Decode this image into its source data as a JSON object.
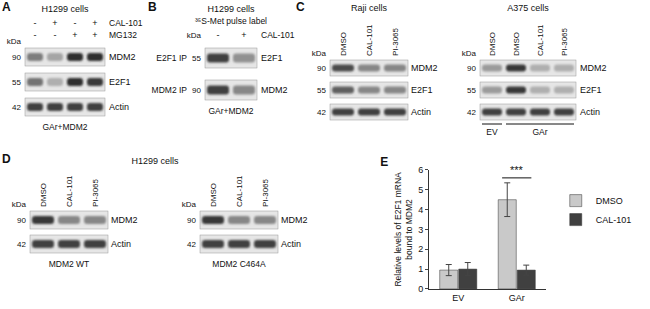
{
  "figure": {
    "panels": [
      {
        "label": "A",
        "cells": "H1299 cells",
        "kda_header": "kDa",
        "treatments": [
          {
            "name": "CAL-101",
            "signs": [
              "-",
              "+",
              "-",
              "+"
            ]
          },
          {
            "name": "MG132",
            "signs": [
              "-",
              "-",
              "+",
              "+"
            ]
          }
        ],
        "rows": [
          {
            "kda": "90",
            "protein": "MDM2",
            "intensity": [
              0.55,
              0.35,
              0.95,
              0.95
            ]
          },
          {
            "kda": "55",
            "protein": "E2F1",
            "intensity": [
              0.6,
              0.3,
              0.95,
              0.9
            ]
          },
          {
            "kda": "42",
            "protein": "Actin",
            "intensity": [
              0.85,
              0.85,
              0.85,
              0.85
            ]
          }
        ],
        "footer": "GAr+MDM2"
      },
      {
        "label": "B",
        "cells": "H1299 cells",
        "subtitle": "³⁵S-Met pulse label",
        "kda_header": "kDa",
        "treatments": [
          {
            "name": "CAL-101",
            "signs": [
              "-",
              "+"
            ]
          }
        ],
        "rows": [
          {
            "ip": "E2F1 IP",
            "kda": "55",
            "protein": "E2F1",
            "intensity": [
              0.85,
              0.45
            ]
          },
          {
            "ip": "MDM2 IP",
            "kda": "90",
            "protein": "MDM2",
            "intensity": [
              0.85,
              0.5
            ]
          }
        ],
        "footer": "GAr+MDM2"
      },
      {
        "label": "C",
        "blots": [
          {
            "cells": "Raji cells",
            "kda_header": "kDa",
            "lanes": [
              "DMSO",
              "CAL-101",
              "PI-3065"
            ],
            "rows": [
              {
                "kda": "90",
                "protein": "MDM2",
                "intensity": [
                  0.8,
                  0.5,
                  0.5
                ]
              },
              {
                "kda": "55",
                "protein": "E2F1",
                "intensity": [
                  0.7,
                  0.5,
                  0.5
                ]
              },
              {
                "kda": "42",
                "protein": "Actin",
                "intensity": [
                  0.85,
                  0.85,
                  0.85
                ]
              }
            ]
          },
          {
            "cells": "A375 cells",
            "kda_header": "kDa",
            "lanes": [
              "DMSO",
              "DMSO",
              "CAL-101",
              "PI-3065"
            ],
            "rows": [
              {
                "kda": "90",
                "protein": "MDM2",
                "intensity": [
                  0.4,
                  0.9,
                  0.3,
                  0.3
                ]
              },
              {
                "kda": "55",
                "protein": "E2F1",
                "intensity": [
                  0.4,
                  0.9,
                  0.3,
                  0.3
                ]
              },
              {
                "kda": "42",
                "protein": "Actin",
                "intensity": [
                  0.85,
                  0.85,
                  0.85,
                  0.85
                ]
              }
            ],
            "groups": [
              {
                "label": "EV",
                "span": [
                  0,
                  0
                ]
              },
              {
                "label": "GAr",
                "span": [
                  1,
                  3
                ]
              }
            ]
          }
        ]
      },
      {
        "label": "D",
        "cells": "H1299 cells",
        "blots": [
          {
            "kda_header": "kDa",
            "lanes": [
              "DMSO",
              "CAL-101",
              "PI-3065"
            ],
            "rows": [
              {
                "kda": "90",
                "protein": "MDM2",
                "intensity": [
                  0.9,
                  0.5,
                  0.5
                ]
              },
              {
                "kda": "42",
                "protein": "Actin",
                "intensity": [
                  0.85,
                  0.85,
                  0.85
                ]
              }
            ],
            "footer": "MDM2 WT"
          },
          {
            "kda_header": "kDa",
            "lanes": [
              "DMSO",
              "CAL-101",
              "PI-3065"
            ],
            "rows": [
              {
                "kda": "90",
                "protein": "MDM2",
                "intensity": [
                  0.9,
                  0.5,
                  0.5
                ]
              },
              {
                "kda": "42",
                "protein": "Actin",
                "intensity": [
                  0.85,
                  0.85,
                  0.85
                ]
              }
            ],
            "footer": "MDM2 C464A"
          }
        ]
      }
    ]
  },
  "chart_data": {
    "type": "bar",
    "title": "E",
    "y_label": "Relative levels of E2F1 mRNA bound to MDM2",
    "categories": [
      "EV",
      "GAr"
    ],
    "series": [
      {
        "name": "DMSO",
        "color": "#c9c9c9",
        "values": [
          0.95,
          4.5
        ],
        "error": [
          0.28,
          0.85
        ]
      },
      {
        "name": "CAL-101",
        "color": "#404040",
        "values": [
          1.0,
          0.95
        ],
        "error": [
          0.33,
          0.25
        ]
      }
    ],
    "ylim": [
      0,
      6
    ],
    "yticks": [
      0,
      1,
      2,
      3,
      4,
      5,
      6
    ],
    "grid": false,
    "legend": "right",
    "annotations": [
      {
        "text": "***",
        "category": "GAr",
        "y": 5.6
      }
    ]
  }
}
